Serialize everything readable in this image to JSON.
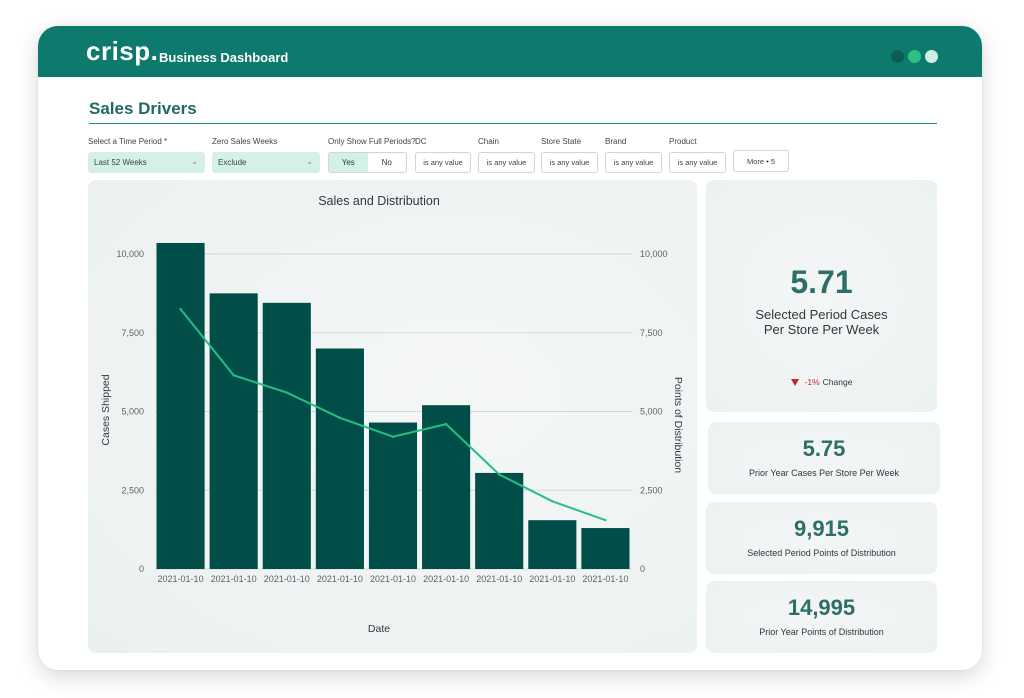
{
  "app": {
    "logo": "crisp.",
    "title": "Business Dashboard",
    "window_dots": [
      "#0b5c55",
      "#2fbf7f",
      "#cfeee2"
    ]
  },
  "page": {
    "title": "Sales Drivers"
  },
  "filters": {
    "time_period": {
      "label": "Select a Time Period *",
      "value": "Last 52 Weeks"
    },
    "zero_sales": {
      "label": "Zero Sales Weeks",
      "value": "Exclude"
    },
    "full_periods": {
      "label": "Only Show Full Periods?",
      "yes": "Yes",
      "no": "No",
      "selected": "Yes"
    },
    "dc": {
      "label": "DC",
      "value": "is any value"
    },
    "chain": {
      "label": "Chain",
      "value": "is any value"
    },
    "store_state": {
      "label": "Store State",
      "value": "is any value"
    },
    "brand": {
      "label": "Brand",
      "value": "is any value"
    },
    "product": {
      "label": "Product",
      "value": "is any value"
    },
    "more": "More • 5"
  },
  "chart_data": {
    "type": "bar",
    "title": "Sales and Distribution",
    "xlabel": "Date",
    "ylabel": "Cases Shipped",
    "y2label": "Points of Distribution",
    "categories": [
      "2021-01-10",
      "2021-01-10",
      "2021-01-10",
      "2021-01-10",
      "2021-01-10",
      "2021-01-10",
      "2021-01-10",
      "2021-01-10",
      "2021-01-10"
    ],
    "series": [
      {
        "type": "bar",
        "axis": "left",
        "color": "#014d47",
        "values": [
          10350,
          8750,
          8450,
          7000,
          4650,
          5200,
          3050,
          1550,
          1300
        ]
      },
      {
        "type": "line",
        "axis": "right",
        "color": "#25bf7f",
        "values": [
          8250,
          6150,
          5600,
          4800,
          4200,
          4600,
          3000,
          2150,
          1550
        ]
      }
    ],
    "ylim": [
      0,
      10000
    ],
    "y2lim": [
      0,
      10000
    ],
    "yticks": [
      "0",
      "2,500",
      "5,000",
      "7,500",
      "10,000"
    ],
    "y2ticks": [
      "0",
      "2,500",
      "5,000",
      "7,500",
      "10,000"
    ],
    "ytick_values": [
      0,
      2500,
      5000,
      7500,
      10000
    ],
    "grid": true
  },
  "kpis": [
    {
      "value": "5.71",
      "label_line1": "Selected Period Cases",
      "label_line2": "Per Store Per Week",
      "change_pct": "-1%",
      "change_label": "Change"
    },
    {
      "value": "5.75",
      "label": "Prior Year Cases Per Store Per Week"
    },
    {
      "value": "9,915",
      "label": "Selected Period Points of Distribution"
    },
    {
      "value": "14,995",
      "label": "Prior Year Points of Distribution"
    }
  ]
}
